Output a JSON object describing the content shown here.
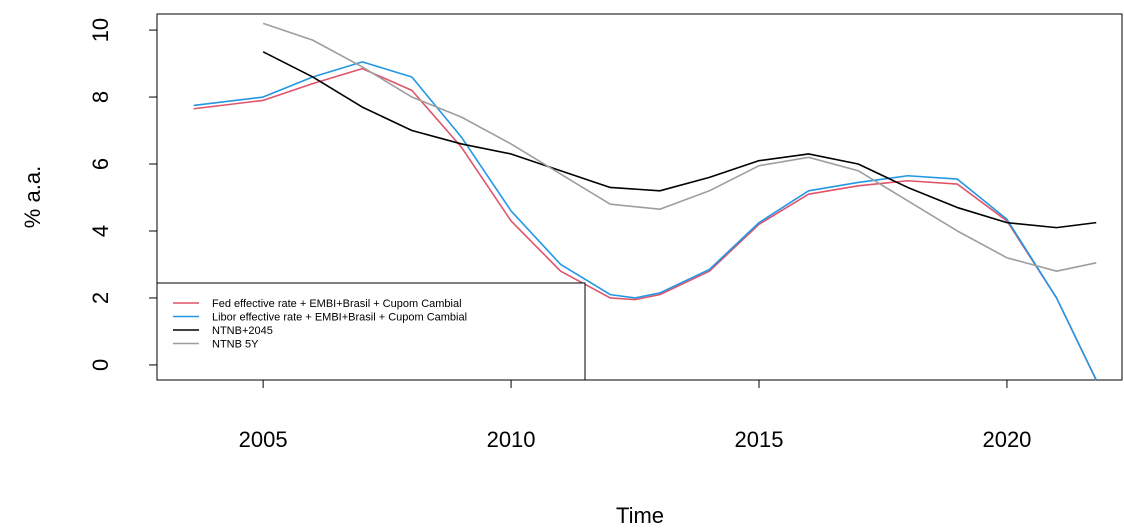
{
  "chart_data": {
    "type": "line",
    "xlabel": "Time",
    "ylabel": "% a.a.",
    "xlim": [
      2002.86,
      2022.32
    ],
    "ylim": [
      -0.45,
      10.48
    ],
    "xticks": [
      2005,
      2010,
      2015,
      2020
    ],
    "yticks": [
      0,
      2,
      4,
      6,
      8,
      10
    ],
    "grid": false,
    "legend": "bottomleft",
    "series": [
      {
        "name": "Fed effective rate + EMBI+Brasil + Cupom Cambial",
        "color": "#df536b",
        "x": [
          2003.6,
          2005,
          2006,
          2007,
          2008,
          2009,
          2010,
          2011,
          2012,
          2012.5,
          2013,
          2014,
          2015,
          2016,
          2017,
          2018,
          2019,
          2020,
          2021,
          2021.8
        ],
        "values": [
          7.65,
          7.9,
          8.4,
          8.85,
          8.2,
          6.5,
          4.3,
          2.8,
          2.0,
          1.95,
          2.1,
          2.8,
          4.2,
          5.1,
          5.35,
          5.5,
          5.4,
          4.3,
          2.0,
          -0.45
        ]
      },
      {
        "name": "Libor effective rate + EMBI+Brasil + Cupom Cambial",
        "color": "#2297e6",
        "x": [
          2003.6,
          2005,
          2006,
          2007,
          2008,
          2009,
          2010,
          2011,
          2012,
          2012.5,
          2013,
          2014,
          2015,
          2016,
          2017,
          2018,
          2019,
          2020,
          2021,
          2021.8
        ],
        "values": [
          7.75,
          8.0,
          8.6,
          9.05,
          8.6,
          6.8,
          4.6,
          3.0,
          2.1,
          2.0,
          2.15,
          2.85,
          4.25,
          5.2,
          5.45,
          5.65,
          5.55,
          4.35,
          2.0,
          -0.45
        ]
      },
      {
        "name": "NTNB+2045",
        "color": "#000000",
        "x": [
          2005,
          2006,
          2007,
          2008,
          2009,
          2010,
          2011,
          2012,
          2013,
          2014,
          2015,
          2016,
          2017,
          2018,
          2019,
          2020,
          2021,
          2021.8
        ],
        "values": [
          9.35,
          8.6,
          7.7,
          7.0,
          6.6,
          6.3,
          5.8,
          5.3,
          5.2,
          5.6,
          6.1,
          6.3,
          6.0,
          5.3,
          4.7,
          4.25,
          4.1,
          4.25
        ]
      },
      {
        "name": "NTNB 5Y",
        "color": "#9e9e9e",
        "x": [
          2005,
          2006,
          2007,
          2008,
          2009,
          2010,
          2011,
          2012,
          2013,
          2014,
          2015,
          2016,
          2017,
          2018,
          2019,
          2020,
          2021,
          2021.8
        ],
        "values": [
          10.2,
          9.7,
          8.9,
          8.0,
          7.4,
          6.6,
          5.7,
          4.8,
          4.65,
          5.2,
          5.95,
          6.2,
          5.8,
          4.9,
          4.0,
          3.2,
          2.8,
          3.05
        ]
      }
    ]
  }
}
